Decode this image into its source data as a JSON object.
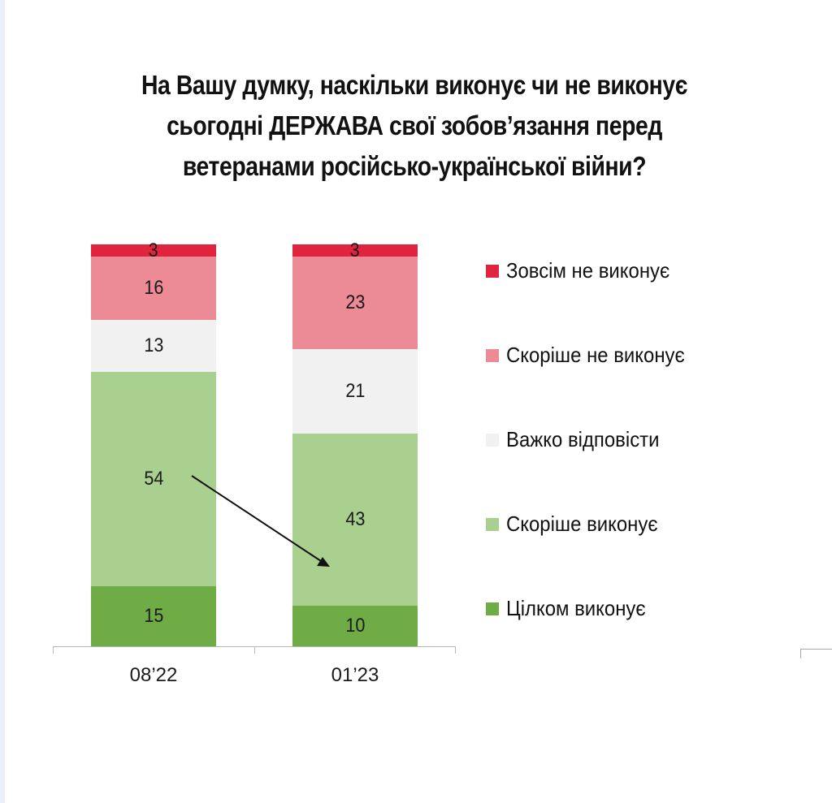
{
  "title": {
    "lines": [
      "На Вашу думку, наскільки виконує чи не виконує",
      "сьогодні ДЕРЖАВА свої зобов’язання перед",
      "ветеранами російсько-української війни?"
    ]
  },
  "legend": [
    {
      "label": "Зовсім не виконує",
      "color": "#e0243f"
    },
    {
      "label": "Скоріше не виконує",
      "color": "#ec8a95"
    },
    {
      "label": "Важко відповісти",
      "color": "#f1f1f1"
    },
    {
      "label": "Скоріше виконує",
      "color": "#a9d08e"
    },
    {
      "label": "Цілком виконує",
      "color": "#6fac46"
    }
  ],
  "bars": [
    {
      "category": "08’22",
      "segments": [
        {
          "label": "3",
          "value": 3,
          "color": "#e0243f"
        },
        {
          "label": "16",
          "value": 16,
          "color": "#ec8a95"
        },
        {
          "label": "13",
          "value": 13,
          "color": "#f1f1f1"
        },
        {
          "label": "54",
          "value": 54,
          "color": "#a9d08e"
        },
        {
          "label": "15",
          "value": 15,
          "color": "#6fac46"
        }
      ]
    },
    {
      "category": "01’23",
      "segments": [
        {
          "label": "3",
          "value": 3,
          "color": "#e0243f"
        },
        {
          "label": "23",
          "value": 23,
          "color": "#ec8a95"
        },
        {
          "label": "21",
          "value": 21,
          "color": "#f1f1f1"
        },
        {
          "label": "43",
          "value": 43,
          "color": "#a9d08e"
        },
        {
          "label": "10",
          "value": 10,
          "color": "#6fac46"
        }
      ]
    }
  ],
  "chart_data": {
    "type": "bar",
    "stacked": true,
    "orientation": "vertical",
    "title": "На Вашу думку, наскільки виконує чи не виконує сьогодні ДЕРЖАВА свої зобов’язання перед ветеранами російсько-української війни?",
    "categories": [
      "08’22",
      "01’23"
    ],
    "series": [
      {
        "name": "Зовсім не виконує",
        "values": [
          3,
          3
        ],
        "color": "#e0243f"
      },
      {
        "name": "Скоріше не виконує",
        "values": [
          16,
          23
        ],
        "color": "#ec8a95"
      },
      {
        "name": "Важко відповісти",
        "values": [
          13,
          21
        ],
        "color": "#f1f1f1"
      },
      {
        "name": "Скоріше виконує",
        "values": [
          54,
          43
        ],
        "color": "#a9d08e"
      },
      {
        "name": "Цілком виконує",
        "values": [
          15,
          10
        ],
        "color": "#6fac46"
      }
    ],
    "xlabel": "",
    "ylabel": "",
    "ylim": [
      0,
      100
    ],
    "grid": false,
    "legend_position": "right",
    "annotations": [
      "arrow from 54 (08’22 'Скоріше виконує') pointing down to 43 (01’23 'Скоріше виконує')"
    ]
  }
}
